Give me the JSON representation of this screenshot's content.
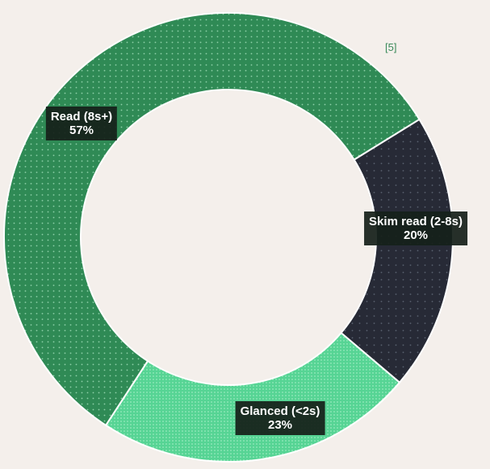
{
  "chart_data": {
    "type": "pie",
    "variant": "donut",
    "title": "",
    "reference_note": "[5]",
    "categories": [
      "Read (8s+)",
      "Skim read (2-8s)",
      "Glanced (<2s)"
    ],
    "values": [
      57,
      20,
      23
    ],
    "value_labels": [
      "57%",
      "20%",
      "23%"
    ],
    "unit": "%",
    "colors": [
      "#2f8a55",
      "#272a36",
      "#56d494"
    ],
    "legend": "none",
    "data_labels": "on-slice"
  }
}
